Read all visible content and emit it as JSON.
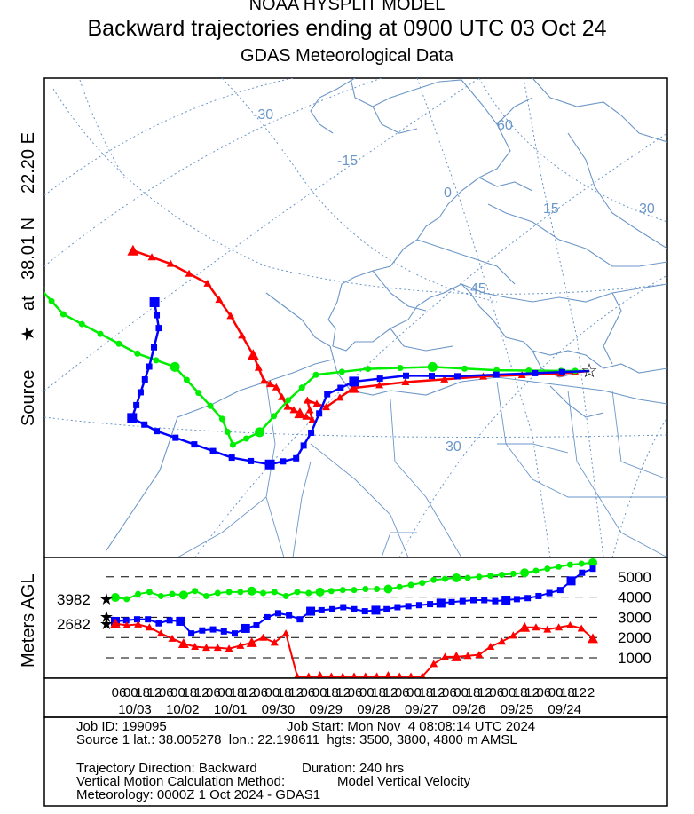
{
  "header": {
    "model": "NOAA HYSPLIT MODEL",
    "title": "Backward trajectories ending at 0900 UTC 03 Oct 24",
    "subtitle": "GDAS Meteorological Data"
  },
  "source_label": {
    "prefix": "Source",
    "star": "★",
    "at": "at",
    "lat": "38.01 N",
    "lon": "22.20 E"
  },
  "map": {
    "graticule_labels": [
      "-30",
      "-15",
      "0",
      "15",
      "30",
      "60",
      "45",
      "30"
    ]
  },
  "chart_data": [
    {
      "type": "line",
      "panel": "map",
      "description_units": "trajectory paths (lon, lat in degrees) ending at source",
      "source": {
        "lat": 38.01,
        "lon": 22.2
      },
      "series": [
        {
          "color": "#ff0000",
          "marker": "triangle",
          "start_height_m": 3500,
          "path": [
            [
              -14,
              47
            ],
            [
              -11,
              46
            ],
            [
              -8,
              44.5
            ],
            [
              -6,
              42
            ],
            [
              -4,
              39
            ],
            [
              -3,
              37
            ],
            [
              -2,
              36.5
            ],
            [
              -1,
              35
            ],
            [
              0,
              34.5
            ],
            [
              1,
              34
            ],
            [
              0.5,
              35.5
            ],
            [
              2,
              35
            ],
            [
              4,
              36.5
            ],
            [
              8,
              37
            ],
            [
              14,
              37.5
            ],
            [
              20,
              37.8
            ],
            [
              22.2,
              38.01
            ]
          ]
        },
        {
          "color": "#00ee00",
          "marker": "circle",
          "start_height_m": 4800,
          "path": [
            [
              -21,
              44
            ],
            [
              -19,
              42
            ],
            [
              -16,
              40.5
            ],
            [
              -13,
              39
            ],
            [
              -10,
              38
            ],
            [
              -8,
              36
            ],
            [
              -6,
              34
            ],
            [
              -5,
              32
            ],
            [
              -3,
              33
            ],
            [
              -1,
              35.5
            ],
            [
              1,
              37.5
            ],
            [
              5,
              38
            ],
            [
              10,
              38.2
            ],
            [
              15,
              38
            ],
            [
              20,
              38
            ],
            [
              22.2,
              38.01
            ]
          ]
        },
        {
          "color": "#0000ff",
          "marker": "square",
          "start_height_m": 3800,
          "path": [
            [
              -12,
              43
            ],
            [
              -11.5,
              41
            ],
            [
              -12,
              38
            ],
            [
              -12.5,
              36
            ],
            [
              -13,
              34
            ],
            [
              -11,
              33
            ],
            [
              -8,
              32
            ],
            [
              -5,
              31
            ],
            [
              -2,
              30.5
            ],
            [
              0,
              31
            ],
            [
              1,
              33
            ],
            [
              2,
              36
            ],
            [
              4,
              37
            ],
            [
              8,
              37.5
            ],
            [
              12,
              37.5
            ],
            [
              18,
              37.8
            ],
            [
              22.2,
              38.01
            ]
          ]
        }
      ]
    },
    {
      "type": "line",
      "panel": "height",
      "ylabel": "Meters AGL",
      "yticks": [
        1000,
        2000,
        3000,
        4000,
        5000
      ],
      "start_labels": [
        "3982",
        "2682"
      ],
      "xlabel_hours": [
        "06",
        "00",
        "18",
        "12",
        "06",
        "00",
        "18",
        "12",
        "06",
        "00",
        "18",
        "12",
        "06",
        "00",
        "18",
        "12",
        "06",
        "00",
        "18",
        "12",
        "06",
        "00",
        "18",
        "12",
        "06",
        "00",
        "18",
        "12",
        "06",
        "00",
        "18",
        "12",
        "06",
        "00",
        "18",
        "12",
        "06",
        "00",
        "18",
        "12",
        "2"
      ],
      "date_labels": [
        "10/03",
        "10/02",
        "10/01",
        "09/30",
        "09/29",
        "09/28",
        "09/27",
        "09/26",
        "09/25",
        "09/24"
      ],
      "series": [
        {
          "color": "#00ee00",
          "marker": "circle",
          "values": [
            3982,
            3900,
            4150,
            4250,
            4050,
            4150,
            4100,
            4300,
            4050,
            4200,
            4250,
            4250,
            4300,
            4200,
            4250,
            4050,
            4250,
            4200,
            4250,
            4300,
            4350,
            4350,
            4400,
            4400,
            4400,
            4500,
            4600,
            4700,
            4850,
            4900,
            4950,
            4950,
            5000,
            5050,
            5100,
            5150,
            5200,
            5300,
            5400,
            5500,
            5600,
            5650,
            5700
          ]
        },
        {
          "color": "#0000ff",
          "marker": "square",
          "values": [
            2800,
            2850,
            2900,
            2900,
            2700,
            2850,
            2800,
            2200,
            2350,
            2400,
            2300,
            2200,
            2450,
            2600,
            3000,
            3200,
            3100,
            2900,
            3300,
            3350,
            3400,
            3500,
            3400,
            3300,
            3350,
            3400,
            3500,
            3550,
            3600,
            3650,
            3700,
            3750,
            3800,
            3850,
            3850,
            3800,
            3850,
            3900,
            3950,
            4050,
            4200,
            4350,
            4800,
            5200,
            5400
          ]
        },
        {
          "color": "#ff0000",
          "marker": "triangle",
          "values": [
            2682,
            2600,
            2650,
            2500,
            2200,
            1950,
            1700,
            1550,
            1500,
            1500,
            1450,
            1600,
            1750,
            2000,
            1750,
            2200,
            -200,
            -200,
            -200,
            -200,
            -200,
            -200,
            -200,
            -200,
            -200,
            -200,
            -200,
            0,
            700,
            1050,
            1050,
            1100,
            1150,
            1550,
            1800,
            2100,
            2500,
            2500,
            2400,
            2500,
            2600,
            2450,
            1950
          ]
        }
      ]
    }
  ],
  "info": {
    "job_id": "Job ID: 199095",
    "job_start": "Job Start: Mon Nov  4 08:08:14 UTC 2024",
    "source_line": "Source 1 lat.: 38.005278  lon.: 22.198611  hgts: 3500, 3800, 4800 m AMSL",
    "direction": "Trajectory Direction: Backward",
    "duration": "Duration: 240 hrs",
    "vertical_motion_label": "Vertical Motion Calculation Method:",
    "vertical_motion_value": "Model Vertical Velocity",
    "meteorology": "Meteorology: 0000Z 1 Oct 2024 - GDAS1"
  },
  "colors": {
    "red": "#ff0000",
    "green": "#00ee00",
    "blue": "#0000ff",
    "coast": "#6b96c8",
    "grid": "#6b96c8"
  }
}
